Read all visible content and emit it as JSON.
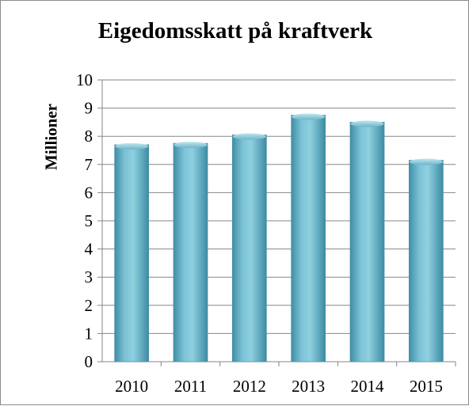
{
  "chart_data": {
    "type": "bar",
    "title": "Eigedomsskatt på kraftverk",
    "xlabel": "",
    "ylabel": "Millioner",
    "categories": [
      "2010",
      "2011",
      "2012",
      "2013",
      "2014",
      "2015"
    ],
    "values": [
      7.7,
      7.75,
      8.05,
      8.75,
      8.5,
      7.15
    ],
    "ylim": [
      0,
      10
    ],
    "y_ticks": [
      "0",
      "1",
      "2",
      "3",
      "4",
      "5",
      "6",
      "7",
      "8",
      "9",
      "10"
    ],
    "grid": true,
    "legend": "none",
    "bar_color": "#6fb3c8",
    "bar_top_color": "#bfe7ef",
    "grid_color": "#868686"
  }
}
